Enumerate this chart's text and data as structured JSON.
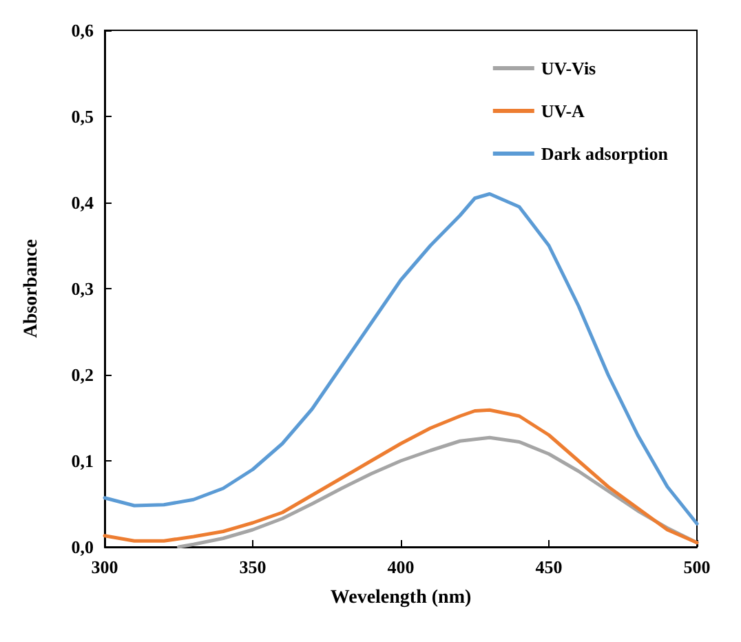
{
  "chart_data": {
    "type": "line",
    "xlabel": "Wevelength (nm)",
    "ylabel": "Absorbance",
    "xlim": [
      300,
      500
    ],
    "xticks": [
      300,
      350,
      400,
      450,
      500
    ],
    "ylim": [
      0,
      0.6
    ],
    "yticks": [
      {
        "value": 0,
        "label": "0,0"
      },
      {
        "value": 0.1,
        "label": "0,1"
      },
      {
        "value": 0.2,
        "label": "0,2"
      },
      {
        "value": 0.3,
        "label": "0,3"
      },
      {
        "value": 0.4,
        "label": "0,4"
      },
      {
        "value": 0.5,
        "label": "0,5"
      },
      {
        "value": 0.6,
        "label": "0,6"
      }
    ],
    "grid": false,
    "legend": "top right",
    "marker": "none",
    "line_style": "solid",
    "series": [
      {
        "name": "UV-Vis",
        "color": "#a5a5a5",
        "x": [
          325,
          330,
          340,
          350,
          360,
          370,
          380,
          390,
          400,
          410,
          420,
          430,
          440,
          450,
          460,
          470,
          480,
          490,
          500
        ],
        "values": [
          0,
          0.003,
          0.01,
          0.02,
          0.033,
          0.05,
          0.068,
          0.085,
          0.1,
          0.112,
          0.123,
          0.127,
          0.122,
          0.108,
          0.088,
          0.065,
          0.042,
          0.022,
          0.005
        ]
      },
      {
        "name": "UV-A",
        "color": "#ed7d31",
        "x": [
          300,
          310,
          320,
          330,
          340,
          350,
          360,
          370,
          380,
          390,
          400,
          410,
          420,
          425,
          430,
          440,
          450,
          460,
          470,
          480,
          490,
          500
        ],
        "values": [
          0.013,
          0.007,
          0.007,
          0.012,
          0.018,
          0.028,
          0.04,
          0.06,
          0.08,
          0.1,
          0.12,
          0.138,
          0.152,
          0.158,
          0.159,
          0.152,
          0.13,
          0.1,
          0.07,
          0.045,
          0.02,
          0.005
        ]
      },
      {
        "name": "Dark adsorption",
        "color": "#5b9bd5",
        "x": [
          300,
          310,
          320,
          330,
          340,
          350,
          360,
          370,
          380,
          390,
          400,
          410,
          420,
          425,
          430,
          440,
          450,
          460,
          470,
          480,
          490,
          500
        ],
        "values": [
          0.057,
          0.048,
          0.049,
          0.055,
          0.068,
          0.09,
          0.12,
          0.16,
          0.21,
          0.26,
          0.31,
          0.35,
          0.385,
          0.405,
          0.41,
          0.395,
          0.35,
          0.28,
          0.2,
          0.13,
          0.07,
          0.027
        ]
      }
    ]
  }
}
